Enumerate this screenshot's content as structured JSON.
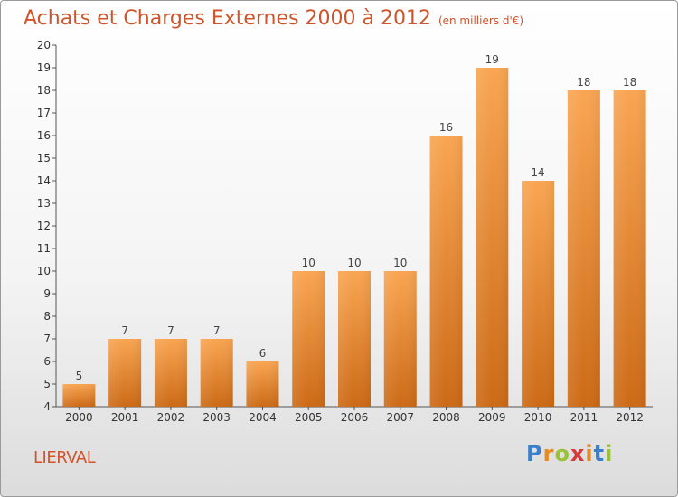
{
  "title": "Achats et Charges Externes 2000 à 2012",
  "subtitle": "(en milliers d'€)",
  "commune": "LIERVAL",
  "logo": {
    "letters": [
      "P",
      "r",
      "o",
      "x",
      "i",
      "t",
      "i"
    ],
    "colors": [
      "#3a7fc9",
      "#e98a1d",
      "#9bc13a",
      "#d63a3a",
      "#e98a1d",
      "#3a7fc9",
      "#9bc13a"
    ]
  },
  "colors": {
    "bar_light": "#f9a552",
    "bar_dark": "#cc6a16",
    "title": "#d0532a"
  },
  "chart_data": {
    "type": "bar",
    "title": "Achats et Charges Externes 2000 à 2012",
    "subtitle": "(en milliers d'€)",
    "categories": [
      "2000",
      "2001",
      "2002",
      "2003",
      "2004",
      "2005",
      "2006",
      "2007",
      "2008",
      "2009",
      "2010",
      "2011",
      "2012"
    ],
    "values": [
      5,
      7,
      7,
      7,
      6,
      10,
      10,
      10,
      16,
      19,
      14,
      18,
      18
    ],
    "ylim": [
      4,
      20
    ],
    "yticks": [
      4,
      5,
      6,
      7,
      8,
      9,
      10,
      11,
      12,
      13,
      14,
      15,
      16,
      17,
      18,
      19,
      20
    ],
    "xlabel": "",
    "ylabel": "",
    "grid": false
  }
}
